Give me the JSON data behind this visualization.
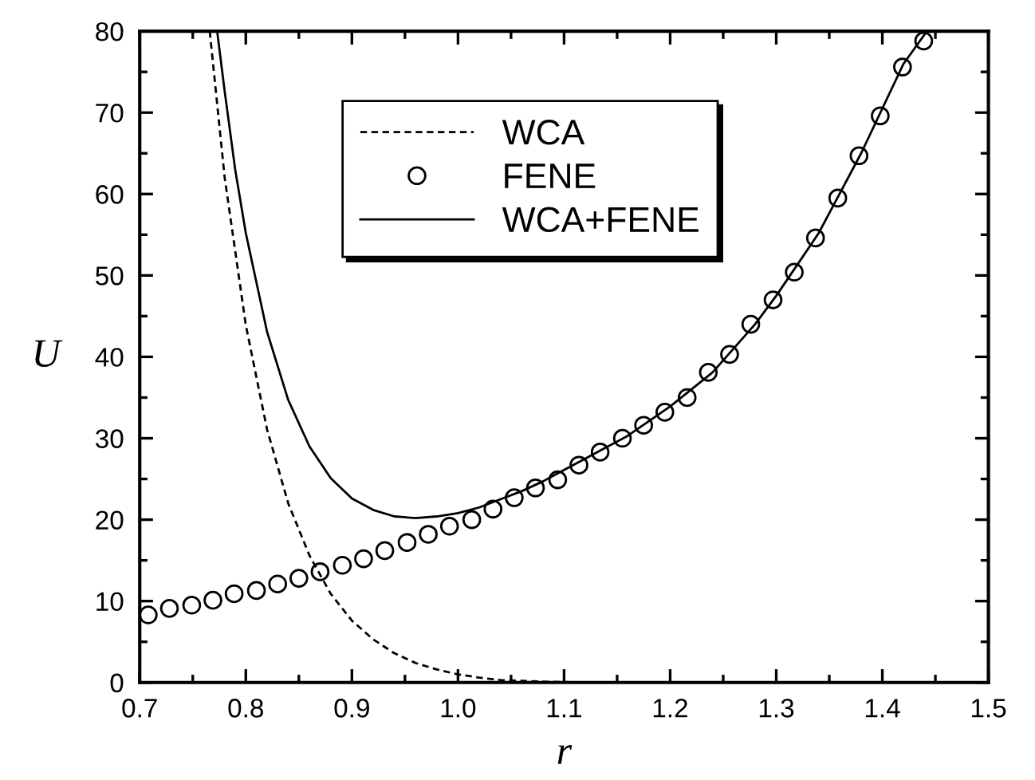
{
  "chart_data": {
    "type": "line",
    "xlabel": "r",
    "ylabel": "U",
    "xlim": [
      0.7,
      1.5
    ],
    "ylim": [
      0,
      80
    ],
    "xticks": [
      0.7,
      0.8,
      0.9,
      {
        "value": 1.0,
        "label": "1.0"
      },
      1.1,
      1.2,
      1.3,
      1.4,
      1.5
    ],
    "yticks": [
      0,
      10,
      20,
      30,
      40,
      50,
      60,
      70,
      80
    ],
    "grid": false,
    "legend": "top",
    "series": [
      {
        "name": "WCA",
        "line_style": "dashed",
        "marker": "none",
        "color": "#000000",
        "x": [
          0.766,
          0.78,
          0.8,
          0.82,
          0.84,
          0.86,
          0.88,
          0.9,
          0.92,
          0.94,
          0.96,
          0.98,
          1.0,
          1.02,
          1.04,
          1.06,
          1.08,
          1.12
        ],
        "values": [
          80,
          62.1,
          43.9,
          31.1,
          22.0,
          15.6,
          10.9,
          7.6,
          5.3,
          3.6,
          2.4,
          1.6,
          1.0,
          0.6,
          0.3,
          0.2,
          0.1,
          0
        ]
      },
      {
        "name": "FENE",
        "type": "scatter",
        "marker": "circle",
        "color": "#000000",
        "x": [
          0.708,
          0.728,
          0.749,
          0.769,
          0.789,
          0.81,
          0.83,
          0.85,
          0.87,
          0.891,
          0.911,
          0.931,
          0.952,
          0.972,
          0.992,
          1.013,
          1.033,
          1.053,
          1.073,
          1.094,
          1.114,
          1.134,
          1.155,
          1.175,
          1.195,
          1.216,
          1.236,
          1.256,
          1.276,
          1.297,
          1.317,
          1.337,
          1.358,
          1.378,
          1.398,
          1.419,
          1.439
        ],
        "values": [
          8.3,
          9.1,
          9.5,
          10.1,
          10.9,
          11.3,
          12.1,
          12.8,
          13.6,
          14.4,
          15.2,
          16.2,
          17.2,
          18.2,
          19.2,
          20.0,
          21.3,
          22.7,
          23.9,
          24.9,
          26.7,
          28.3,
          30.0,
          31.6,
          33.2,
          35.0,
          38.1,
          40.3,
          44.0,
          47.0,
          50.4,
          54.6,
          59.5,
          64.7,
          69.6,
          75.6,
          78.8
        ]
      },
      {
        "name": "WCA+FENE",
        "line_style": "solid",
        "marker": "none",
        "color": "#000000",
        "x": [
          0.773,
          0.78,
          0.79,
          0.8,
          0.82,
          0.84,
          0.86,
          0.88,
          0.9,
          0.92,
          0.94,
          0.96,
          0.98,
          1.0,
          1.02,
          1.04,
          1.06,
          1.08,
          1.1,
          1.12,
          1.16,
          1.2,
          1.24,
          1.28,
          1.3,
          1.34,
          1.38,
          1.42,
          1.442
        ],
        "values": [
          80,
          72.7,
          63,
          55.2,
          43.1,
          34.7,
          29.0,
          25.1,
          22.6,
          21.2,
          20.4,
          20.2,
          20.4,
          20.8,
          21.5,
          22.5,
          23.5,
          24.7,
          26.1,
          27.5,
          30.3,
          33.9,
          38.1,
          44.0,
          47.5,
          55.2,
          65.0,
          76.0,
          80
        ]
      }
    ]
  }
}
